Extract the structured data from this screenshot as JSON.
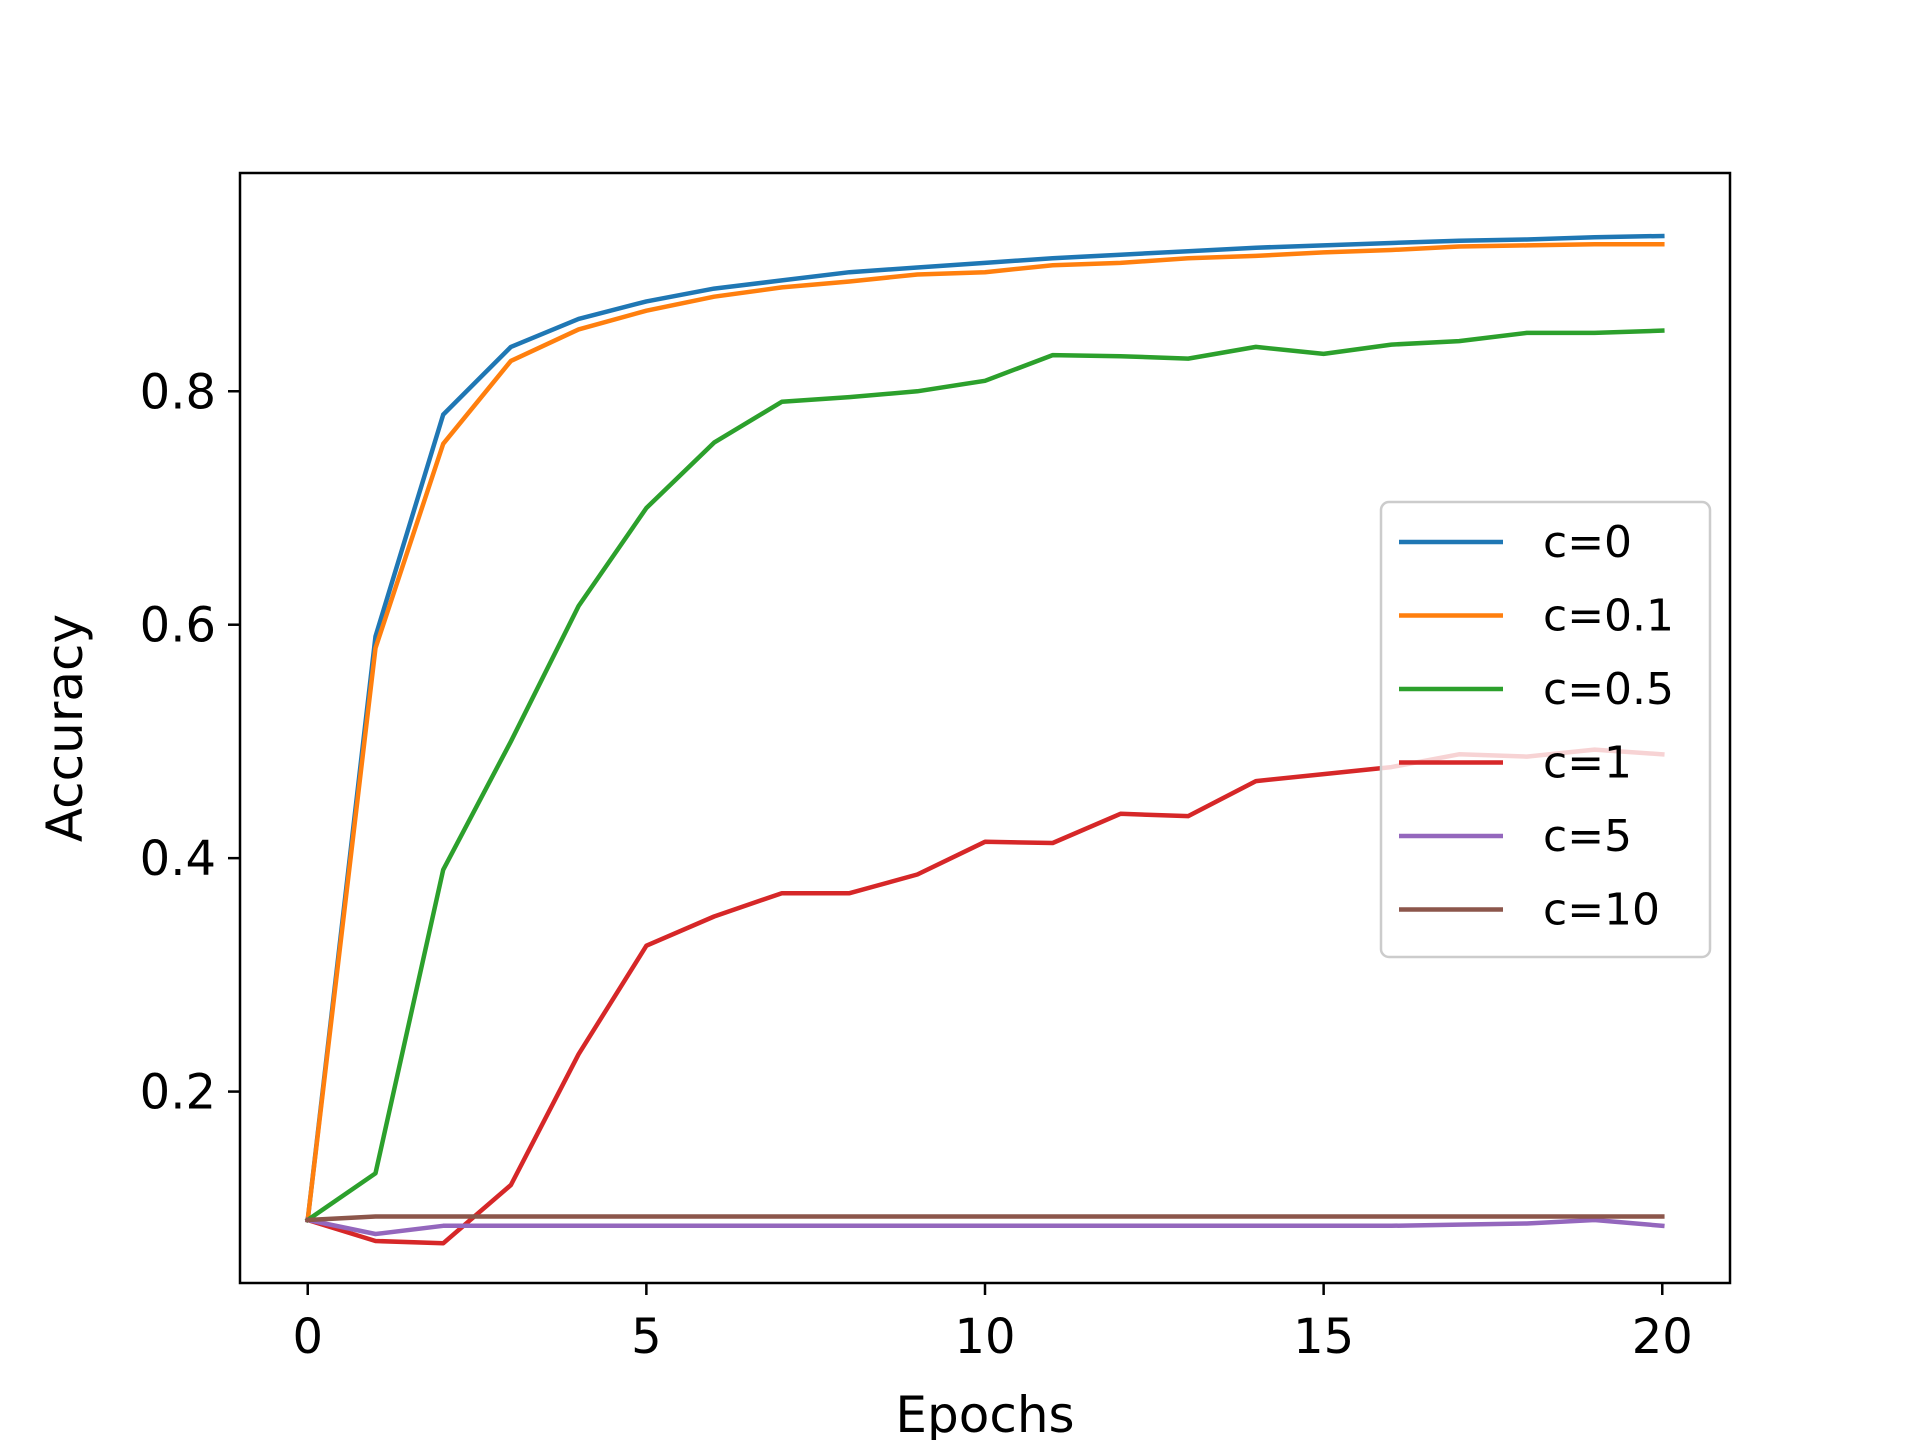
{
  "chart_data": {
    "type": "line",
    "title": "",
    "xlabel": "Epochs",
    "ylabel": "Accuracy",
    "xlim": [
      -1,
      21
    ],
    "ylim": [
      0.036,
      0.987
    ],
    "xticks": [
      0,
      5,
      10,
      15,
      20
    ],
    "xtick_labels": [
      "0",
      "5",
      "10",
      "15",
      "20"
    ],
    "yticks": [
      0.2,
      0.4,
      0.6,
      0.8
    ],
    "ytick_labels": [
      "0.2",
      "0.4",
      "0.6",
      "0.8"
    ],
    "grid": false,
    "legend_position": "center-right",
    "x": [
      0,
      1,
      2,
      3,
      4,
      5,
      6,
      7,
      8,
      9,
      10,
      11,
      12,
      13,
      14,
      15,
      16,
      17,
      18,
      19,
      20
    ],
    "series": [
      {
        "name": "c=0",
        "color": "#1f77b4",
        "values": [
          0.09,
          0.59,
          0.78,
          0.838,
          0.862,
          0.877,
          0.888,
          0.895,
          0.902,
          0.906,
          0.91,
          0.914,
          0.917,
          0.92,
          0.923,
          0.925,
          0.927,
          0.929,
          0.93,
          0.932,
          0.933
        ]
      },
      {
        "name": "c=0.1",
        "color": "#ff7f0e",
        "values": [
          0.09,
          0.58,
          0.755,
          0.826,
          0.853,
          0.869,
          0.881,
          0.889,
          0.894,
          0.9,
          0.902,
          0.908,
          0.91,
          0.914,
          0.916,
          0.919,
          0.921,
          0.924,
          0.925,
          0.926,
          0.926
        ]
      },
      {
        "name": "c=0.5",
        "color": "#2ca02c",
        "values": [
          0.09,
          0.13,
          0.39,
          0.5,
          0.616,
          0.7,
          0.756,
          0.791,
          0.795,
          0.8,
          0.809,
          0.831,
          0.83,
          0.828,
          0.838,
          0.832,
          0.84,
          0.843,
          0.85,
          0.85,
          0.852
        ]
      },
      {
        "name": "c=1",
        "color": "#d62728",
        "values": [
          0.09,
          0.072,
          0.07,
          0.12,
          0.232,
          0.325,
          0.35,
          0.37,
          0.37,
          0.386,
          0.414,
          0.413,
          0.438,
          0.436,
          0.466,
          0.472,
          0.478,
          0.489,
          0.487,
          0.493,
          0.489
        ]
      },
      {
        "name": "c=5",
        "color": "#9467bd",
        "values": [
          0.09,
          0.078,
          0.085,
          0.085,
          0.085,
          0.085,
          0.085,
          0.085,
          0.085,
          0.085,
          0.085,
          0.085,
          0.085,
          0.085,
          0.085,
          0.085,
          0.085,
          0.086,
          0.087,
          0.09,
          0.085
        ]
      },
      {
        "name": "c=10",
        "color": "#8c564b",
        "values": [
          0.09,
          0.093,
          0.093,
          0.093,
          0.093,
          0.093,
          0.093,
          0.093,
          0.093,
          0.093,
          0.093,
          0.093,
          0.093,
          0.093,
          0.093,
          0.093,
          0.093,
          0.093,
          0.093,
          0.093,
          0.093
        ]
      }
    ]
  }
}
